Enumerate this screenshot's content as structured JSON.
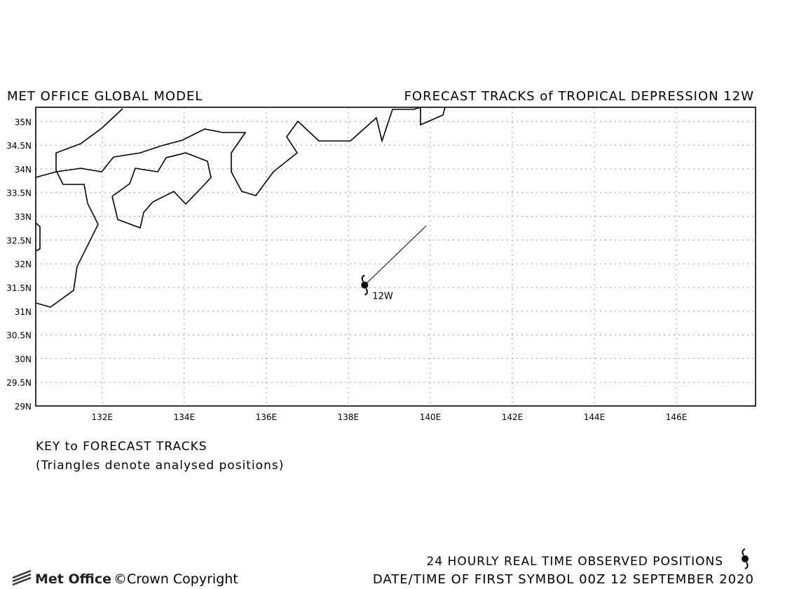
{
  "map": {
    "title_left": "MET OFFICE GLOBAL MODEL",
    "title_right": "FORECAST TRACKS of TROPICAL DEPRESSION 12W",
    "xlim": [
      130.38,
      147.93
    ],
    "ylim": [
      29,
      35.3
    ],
    "xticks": [
      {
        "value": 132,
        "label": "132E"
      },
      {
        "value": 134,
        "label": "134E"
      },
      {
        "value": 136,
        "label": "136E"
      },
      {
        "value": 138,
        "label": "138E"
      },
      {
        "value": 140,
        "label": "140E"
      },
      {
        "value": 142,
        "label": "142E"
      },
      {
        "value": 144,
        "label": "144E"
      },
      {
        "value": 146,
        "label": "146E"
      }
    ],
    "yticks": [
      {
        "value": 29,
        "label": "29N"
      },
      {
        "value": 29.5,
        "label": "29.5N"
      },
      {
        "value": 30,
        "label": "30N"
      },
      {
        "value": 30.5,
        "label": "30.5N"
      },
      {
        "value": 31,
        "label": "31N"
      },
      {
        "value": 31.5,
        "label": "31.5N"
      },
      {
        "value": 32,
        "label": "32N"
      },
      {
        "value": 32.5,
        "label": "32.5N"
      },
      {
        "value": 33,
        "label": "33N"
      },
      {
        "value": 33.5,
        "label": "33.5N"
      },
      {
        "value": 34,
        "label": "34N"
      },
      {
        "value": 34.5,
        "label": "34.5N"
      },
      {
        "value": 35,
        "label": "35N"
      }
    ],
    "grid": true,
    "storm": {
      "label": "12W",
      "lon": 138.4,
      "lat": 31.55
    },
    "track": {
      "lon": [
        138.4,
        139.9
      ],
      "lat": [
        31.55,
        32.8
      ]
    },
    "key_title": "KEY to FORECAST TRACKS",
    "key_note": "(Triangles denote analysed positions)",
    "footer_line1": "24 HOURLY REAL TIME OBSERVED POSITIONS",
    "footer_line2": "DATE/TIME OF FIRST SYMBOL 00Z 12 SEPTEMBER 2020",
    "logo": "Met Office",
    "copyright": "©Crown Copyright"
  }
}
